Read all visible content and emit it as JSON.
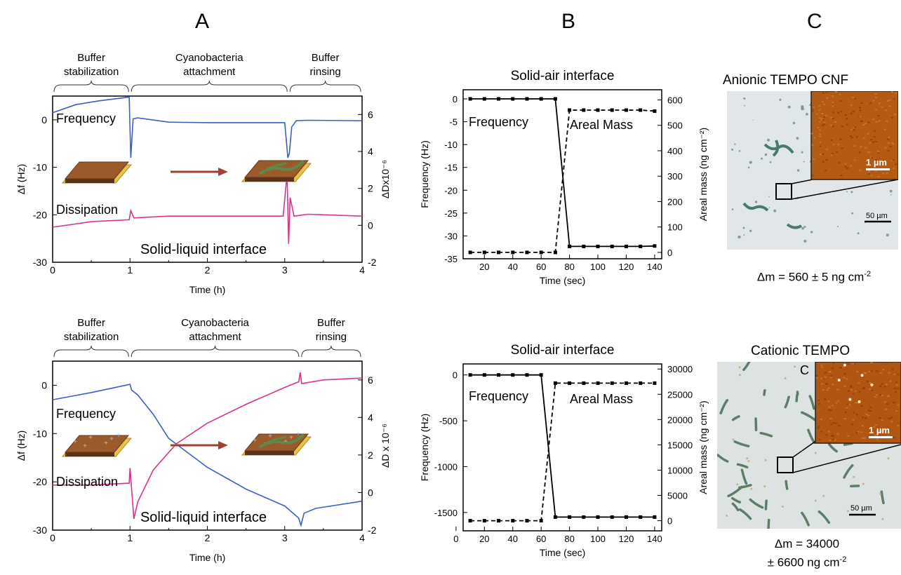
{
  "panels": {
    "a": "A",
    "b": "B",
    "c": "C"
  },
  "colors": {
    "frequency": "#3b5fc4",
    "dissipation": "#d6338a",
    "black": "#000000",
    "micro_bg": "#dfe6e8",
    "afm": "#b05a10",
    "arrow": "#a04030",
    "film": "#9a5a2a",
    "gold": "#e8c24a"
  },
  "chart_data": [
    {
      "id": "A-top",
      "type": "line",
      "phases": [
        "Buffer stabilization",
        "Cyanobacteria attachment",
        "Buffer rinsing"
      ],
      "phase_lines": [
        [
          "Buffer",
          "stabilization"
        ],
        [
          "Cyanobacteria",
          "attachment"
        ],
        [
          "Buffer",
          "rinsing"
        ]
      ],
      "phase_bounds": [
        [
          0,
          1
        ],
        [
          1,
          3.05
        ],
        [
          3.05,
          4
        ]
      ],
      "xlabel": "Time (h)",
      "ylabel": "Δf (Hz)",
      "y2label": "ΔDx10⁻⁶",
      "xlim": [
        0,
        4
      ],
      "ylim": [
        -30,
        5
      ],
      "y2lim": [
        -2,
        7
      ],
      "xticks": [
        "0",
        "1",
        "2",
        "3",
        "4"
      ],
      "yticks": [
        "-30",
        "-20",
        "-10",
        "0"
      ],
      "y2ticks": [
        "-2",
        "0",
        "2",
        "4",
        "6"
      ],
      "series": [
        {
          "name": "Frequency",
          "axis": "left",
          "x": [
            0,
            0.3,
            0.6,
            0.99,
            1.01,
            1.04,
            1.1,
            1.5,
            2,
            2.5,
            3.0,
            3.04,
            3.06,
            3.09,
            3.15,
            3.3,
            4
          ],
          "y": [
            1.5,
            3.2,
            4.0,
            4.8,
            -8.0,
            0.2,
            0.4,
            -0.5,
            -0.6,
            -0.6,
            -0.6,
            -8.0,
            -7.0,
            -1.5,
            -0.2,
            -0.1,
            -0.2
          ]
        },
        {
          "name": "Dissipation",
          "axis": "right",
          "x": [
            0,
            0.5,
            0.99,
            1.01,
            1.05,
            1.5,
            2,
            2.5,
            2.98,
            3.03,
            3.05,
            3.07,
            3.12,
            3.3,
            4
          ],
          "y": [
            -0.1,
            0.2,
            0.3,
            0.8,
            0.4,
            0.5,
            0.5,
            0.5,
            0.5,
            2.8,
            -1.0,
            1.5,
            0.5,
            0.6,
            0.5
          ]
        }
      ],
      "annotations": {
        "frequency": "Frequency",
        "dissipation": "Dissipation",
        "interface": "Solid-liquid interface"
      }
    },
    {
      "id": "A-bottom",
      "type": "line",
      "phases": [
        "Buffer stabilization",
        "Cyanobacteria attachment",
        "Buffer rinsing"
      ],
      "phase_lines": [
        [
          "Buffer",
          "stabilization"
        ],
        [
          "Cyanobacteria",
          "attachment"
        ],
        [
          "Buffer",
          "rinsing"
        ]
      ],
      "phase_bounds": [
        [
          0,
          1
        ],
        [
          1,
          3.2
        ],
        [
          3.2,
          4
        ]
      ],
      "xlabel": "Time (h)",
      "ylabel": "Δf (Hz)",
      "y2label": "ΔD x 10⁻⁶",
      "xlim": [
        0,
        4
      ],
      "ylim": [
        -30,
        5
      ],
      "y2lim": [
        -2,
        7
      ],
      "xticks": [
        "0",
        "1",
        "2",
        "3",
        "4"
      ],
      "yticks": [
        "-30",
        "-20",
        "-10",
        "0"
      ],
      "y2ticks": [
        "-2",
        "0",
        "2",
        "4",
        "6"
      ],
      "series": [
        {
          "name": "Frequency",
          "axis": "left",
          "x": [
            0,
            0.5,
            1.0,
            1.02,
            1.1,
            1.3,
            1.5,
            2,
            2.5,
            3.0,
            3.18,
            3.21,
            3.25,
            3.4,
            4
          ],
          "y": [
            -3.0,
            -1.5,
            0.2,
            -1.0,
            -2.0,
            -6.0,
            -11.0,
            -17.0,
            -21.5,
            -25.0,
            -27.5,
            -29.0,
            -26.5,
            -25.5,
            -24.0
          ]
        },
        {
          "name": "Dissipation",
          "axis": "right",
          "x": [
            0,
            0.5,
            0.99,
            1.0,
            1.05,
            1.1,
            1.3,
            1.6,
            2,
            2.5,
            3.0,
            3.18,
            3.2,
            3.22,
            3.5,
            4
          ],
          "y": [
            0.4,
            0.4,
            0.5,
            1.3,
            -1.4,
            -0.5,
            1.2,
            2.6,
            3.7,
            4.7,
            5.6,
            5.9,
            6.4,
            5.8,
            6.0,
            6.1
          ]
        }
      ],
      "annotations": {
        "frequency": "Frequency",
        "dissipation": "Dissipation",
        "interface": "Solid-liquid interface"
      }
    },
    {
      "id": "B-top",
      "type": "line",
      "title": "Solid-air interface",
      "xlabel": "Time (sec)",
      "ylabel": "Frequency (Hz)",
      "y2label": "Areal mass (ng cm⁻²)",
      "xlim": [
        5,
        145
      ],
      "ylim": [
        -35,
        2
      ],
      "y2lim": [
        -25,
        640
      ],
      "xticks": [
        "20",
        "40",
        "60",
        "80",
        "100",
        "120",
        "140"
      ],
      "yticks": [
        "0",
        "-5",
        "-10",
        "-15",
        "-20",
        "-25",
        "-30",
        "-35"
      ],
      "y2ticks": [
        "0",
        "100",
        "200",
        "300",
        "400",
        "500",
        "600"
      ],
      "series": [
        {
          "name": "Frequency",
          "axis": "left",
          "x": [
            10,
            20,
            30,
            40,
            50,
            60,
            70,
            80,
            90,
            100,
            110,
            120,
            130,
            140
          ],
          "y": [
            0,
            0,
            0,
            0,
            0,
            0,
            0,
            -32.3,
            -32.3,
            -32.3,
            -32.3,
            -32.3,
            -32.3,
            -32.2
          ]
        },
        {
          "name": "Areal Mass",
          "axis": "right",
          "x": [
            10,
            20,
            30,
            40,
            50,
            60,
            70,
            80,
            90,
            100,
            110,
            120,
            130,
            140
          ],
          "y": [
            0,
            0,
            0,
            0,
            0,
            0,
            0,
            560,
            560,
            560,
            560,
            560,
            560,
            556
          ]
        }
      ],
      "annotations": {
        "frequency": "Frequency",
        "mass": "Areal Mass"
      }
    },
    {
      "id": "B-bottom",
      "type": "line",
      "title": "Solid-air interface",
      "xlabel": "Time (sec)",
      "ylabel": "Frequency (Hz)",
      "y2label": "Areal mass (ng cm⁻²)",
      "xlim": [
        5,
        145
      ],
      "ylim": [
        -1700,
        120
      ],
      "y2lim": [
        -2000,
        31000
      ],
      "xticks": [
        "0",
        "20",
        "40",
        "60",
        "80",
        "100",
        "120",
        "140"
      ],
      "yticks": [
        "0",
        "-500",
        "-1000",
        "-1500"
      ],
      "y2ticks": [
        "0",
        "5000",
        "10000",
        "15000",
        "20000",
        "25000",
        "30000"
      ],
      "series": [
        {
          "name": "Frequency",
          "axis": "left",
          "x": [
            10,
            20,
            30,
            40,
            50,
            60,
            70,
            80,
            90,
            100,
            110,
            120,
            130,
            140
          ],
          "y": [
            0,
            0,
            0,
            0,
            0,
            0,
            -1550,
            -1550,
            -1550,
            -1550,
            -1550,
            -1550,
            -1550,
            -1550
          ]
        },
        {
          "name": "Areal Mass",
          "axis": "right",
          "x": [
            10,
            20,
            30,
            40,
            50,
            60,
            70,
            80,
            90,
            100,
            110,
            120,
            130,
            140
          ],
          "y": [
            0,
            0,
            0,
            0,
            0,
            0,
            27200,
            27200,
            27200,
            27200,
            27200,
            27200,
            27200,
            27200
          ]
        }
      ],
      "annotations": {
        "frequency": "Frequency",
        "mass": "Areal Mass"
      }
    }
  ],
  "micrographs": [
    {
      "title": "Anionic TEMPO CNF",
      "inset_scale": "1 µm",
      "scale": "50 µm",
      "caption_main": "Δm = 560 ± 5 ng cm",
      "caption_sup": "-2"
    },
    {
      "title": "Cationic TEMPO",
      "title_fragment": "C",
      "inset_scale": "1 µm",
      "scale": "50 µm",
      "caption_line1": "Δm = 34000",
      "caption_line2": "± 6600 ng cm",
      "caption_sup": "-2"
    }
  ]
}
